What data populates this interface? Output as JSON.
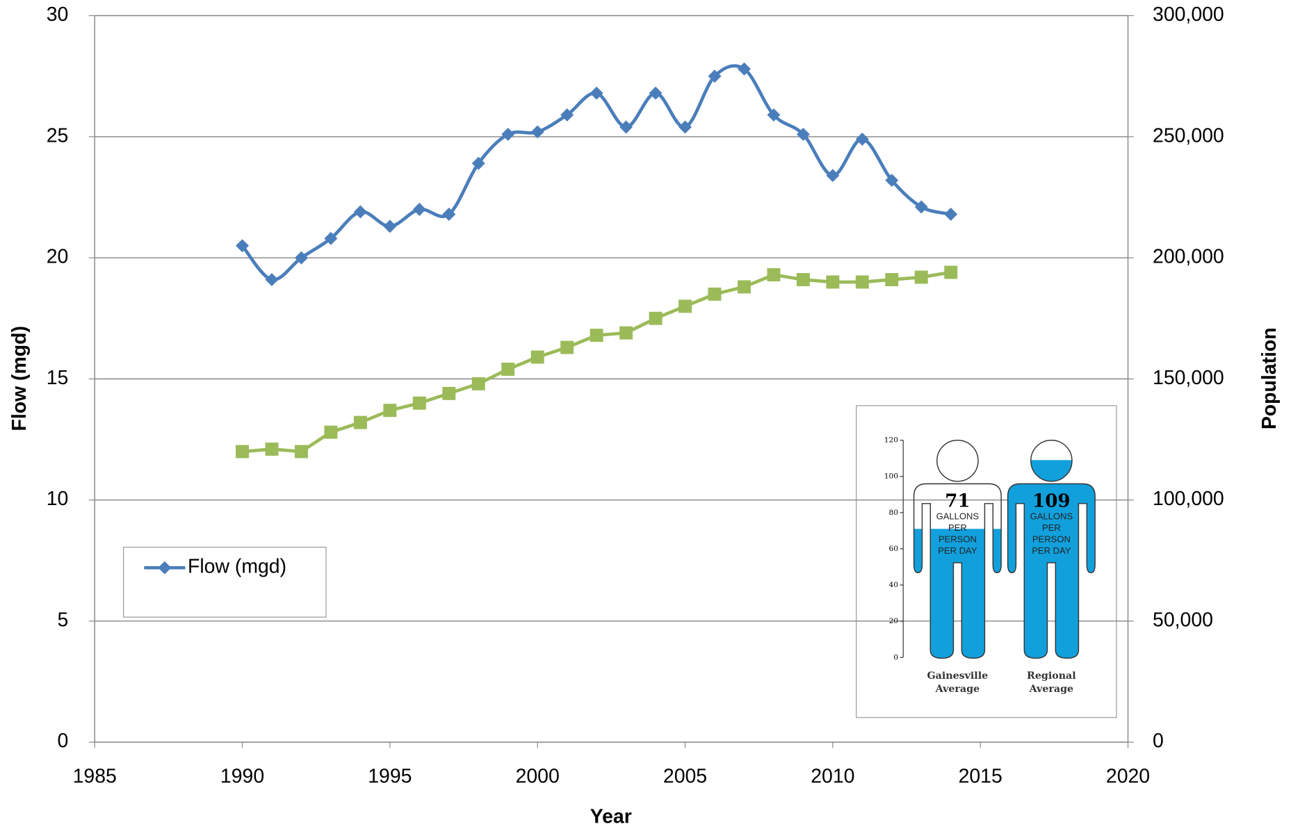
{
  "chart_data": [
    {
      "type": "line",
      "x_label": "Year",
      "y_label": "Flow (mgd)",
      "y2_label": "Population",
      "x": [
        1990,
        1991,
        1992,
        1993,
        1994,
        1995,
        1996,
        1997,
        1998,
        1999,
        2000,
        2001,
        2002,
        2003,
        2004,
        2005,
        2006,
        2007,
        2008,
        2009,
        2010,
        2011,
        2012,
        2013,
        2014
      ],
      "series": [
        {
          "name": "Flow (mgd)",
          "color": "#4a7ebb",
          "marker": "diamond",
          "smooth": true,
          "values": [
            20.5,
            19.1,
            20.0,
            20.8,
            21.9,
            21.3,
            22.0,
            21.8,
            23.9,
            25.1,
            25.2,
            25.9,
            26.8,
            25.4,
            26.8,
            25.4,
            27.5,
            27.8,
            25.9,
            25.1,
            23.4,
            24.9,
            23.2,
            22.1,
            21.8
          ]
        },
        {
          "color": "#9bbb59",
          "marker": "square",
          "smooth": false,
          "axis": "y2",
          "values": [
            120000,
            121000,
            120000,
            128000,
            132000,
            137000,
            140000,
            144000,
            148000,
            154000,
            159000,
            163000,
            168000,
            169000,
            175000,
            180000,
            185000,
            188000,
            193000,
            191000,
            190000,
            190000,
            191000,
            192000,
            194000
          ]
        }
      ],
      "xlim": [
        1985,
        2020
      ],
      "xticks": [
        1985,
        1990,
        1995,
        2000,
        2005,
        2010,
        2015,
        2020
      ],
      "ylim": [
        0,
        30
      ],
      "yticks": [
        0,
        5,
        10,
        15,
        20,
        25,
        30
      ],
      "y2lim": [
        0,
        300000
      ],
      "y2ticks": [
        0,
        {
          "value": 50000,
          "label": "50,000"
        },
        {
          "value": 100000,
          "label": "100,000"
        },
        {
          "value": 150000,
          "label": "150,000"
        },
        {
          "value": 200000,
          "label": "200,000"
        },
        {
          "value": 250000,
          "label": "250,000"
        },
        {
          "value": 300000,
          "label": "300,000"
        }
      ],
      "grid": true,
      "legend": "left"
    },
    {
      "type": "pictograph",
      "categories": [
        "Gainesville Average",
        "Regional Average"
      ],
      "values": [
        71,
        109
      ],
      "value_note": "GALLONS PER PERSON PER DAY",
      "color": "#11a0dc",
      "ylim": [
        0,
        120
      ],
      "yticks": [
        0,
        20,
        40,
        60,
        80,
        100,
        120
      ]
    }
  ]
}
